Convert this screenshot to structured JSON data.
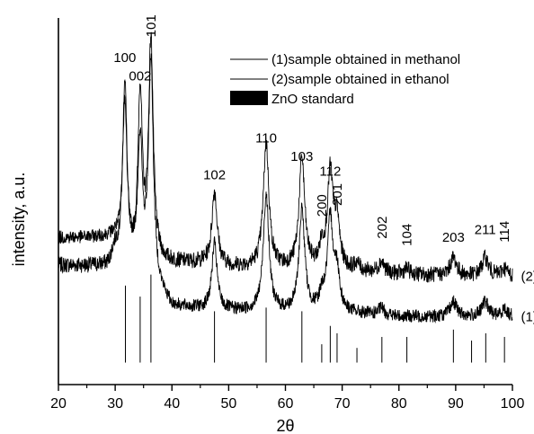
{
  "chart_data": {
    "type": "line",
    "xlabel": "2θ",
    "ylabel": "intensity, a.u.",
    "xlim": [
      20,
      100
    ],
    "ylim": [
      0,
      100
    ],
    "x_ticks": [
      20,
      30,
      40,
      50,
      60,
      70,
      80,
      90,
      100
    ],
    "grid": false,
    "legend": {
      "placement": "top-right",
      "entries": [
        {
          "label": "(1)sample obtained in methanol",
          "marker": "line"
        },
        {
          "label": "(2)sample obtained in ethanol",
          "marker": "line"
        },
        {
          "label": "ZnO standard",
          "marker": "filled-rect"
        }
      ]
    },
    "series_tags": [
      {
        "label": "(2)",
        "x": 101.5,
        "y": 29.5
      },
      {
        "label": "(1)",
        "x": 101.5,
        "y": 18.5
      }
    ],
    "background": {
      "x": 30,
      "y": 42
    },
    "peak_labels": [
      {
        "text": "100",
        "x": 31.7,
        "y": 88
      },
      {
        "text": "002",
        "x": 34.4,
        "y": 83
      },
      {
        "text": "101",
        "x": 36.3,
        "y": 96,
        "rotate": true
      },
      {
        "text": "102",
        "x": 47.5,
        "y": 56
      },
      {
        "text": "110",
        "x": 56.6,
        "y": 66
      },
      {
        "text": "103",
        "x": 62.9,
        "y": 61
      },
      {
        "text": "200",
        "x": 66.4,
        "y": 47,
        "rotate": true
      },
      {
        "text": "112",
        "x": 67.9,
        "y": 57
      },
      {
        "text": "201",
        "x": 69.1,
        "y": 50,
        "rotate": true
      },
      {
        "text": "202",
        "x": 77.0,
        "y": 41,
        "rotate": true
      },
      {
        "text": "104",
        "x": 81.4,
        "y": 39,
        "rotate": true
      },
      {
        "text": "203",
        "x": 89.6,
        "y": 39
      },
      {
        "text": "211",
        "x": 95.2,
        "y": 41
      },
      {
        "text": "114",
        "x": 98.6,
        "y": 40,
        "rotate": true
      }
    ],
    "series": [
      {
        "name": "(2)sample obtained in ethanol",
        "color": "#000000",
        "baseline": [
          [
            20,
            32.5
          ],
          [
            30,
            32
          ],
          [
            40,
            33
          ],
          [
            45,
            33
          ],
          [
            50,
            32
          ],
          [
            60,
            31.5
          ],
          [
            70,
            31
          ],
          [
            80,
            30
          ],
          [
            90,
            29.5
          ],
          [
            100,
            29.5
          ]
        ],
        "peaks": [
          {
            "x": 31.7,
            "height": 50,
            "width": 0.45
          },
          {
            "x": 34.4,
            "height": 46,
            "width": 0.45
          },
          {
            "x": 36.3,
            "height": 60,
            "width": 0.5
          },
          {
            "x": 47.5,
            "height": 20,
            "width": 0.55
          },
          {
            "x": 56.6,
            "height": 34,
            "width": 0.6
          },
          {
            "x": 62.9,
            "height": 30,
            "width": 0.6
          },
          {
            "x": 66.4,
            "height": 5,
            "width": 0.5
          },
          {
            "x": 67.9,
            "height": 26,
            "width": 0.6
          },
          {
            "x": 69.1,
            "height": 12,
            "width": 0.55
          },
          {
            "x": 72.6,
            "height": 2,
            "width": 0.5
          },
          {
            "x": 76.9,
            "height": 3,
            "width": 0.6
          },
          {
            "x": 81.4,
            "height": 1.5,
            "width": 0.6
          },
          {
            "x": 89.6,
            "height": 5,
            "width": 0.7
          },
          {
            "x": 95.2,
            "height": 5,
            "width": 0.7
          },
          {
            "x": 98.6,
            "height": 2,
            "width": 0.6
          }
        ],
        "shoulder": {
          "x": 30,
          "height": 4
        },
        "noise": 2.2
      },
      {
        "name": "(1)sample obtained in methanol",
        "color": "#000000",
        "baseline": [
          [
            20,
            40
          ],
          [
            30,
            40
          ],
          [
            40,
            21
          ],
          [
            50,
            20
          ],
          [
            60,
            19.5
          ],
          [
            70,
            19.5
          ],
          [
            80,
            18.5
          ],
          [
            90,
            18.5
          ],
          [
            100,
            18.5
          ]
        ],
        "peaks": [
          {
            "x": 31.7,
            "height": 40,
            "width": 0.45
          },
          {
            "x": 34.4,
            "height": 34,
            "width": 0.45
          },
          {
            "x": 36.3,
            "height": 60,
            "width": 0.5
          },
          {
            "x": 47.5,
            "height": 18,
            "width": 0.55
          },
          {
            "x": 56.6,
            "height": 32,
            "width": 0.6
          },
          {
            "x": 62.9,
            "height": 28,
            "width": 0.6
          },
          {
            "x": 66.4,
            "height": 4,
            "width": 0.5
          },
          {
            "x": 67.9,
            "height": 25,
            "width": 0.6
          },
          {
            "x": 69.1,
            "height": 10,
            "width": 0.55
          },
          {
            "x": 76.9,
            "height": 2,
            "width": 0.6
          },
          {
            "x": 89.6,
            "height": 4,
            "width": 0.7
          },
          {
            "x": 95.2,
            "height": 4,
            "width": 0.7
          },
          {
            "x": 98.6,
            "height": 2,
            "width": 0.6
          }
        ],
        "noise": 1.8
      }
    ],
    "standard_lines": {
      "name": "ZnO standard",
      "color": "#000000",
      "base_y": 6,
      "lines": [
        {
          "x": 31.8,
          "y": 27
        },
        {
          "x": 34.4,
          "y": 24
        },
        {
          "x": 36.3,
          "y": 30
        },
        {
          "x": 47.5,
          "y": 20
        },
        {
          "x": 56.6,
          "y": 21
        },
        {
          "x": 62.9,
          "y": 20
        },
        {
          "x": 66.4,
          "y": 11
        },
        {
          "x": 67.9,
          "y": 16
        },
        {
          "x": 69.1,
          "y": 14
        },
        {
          "x": 72.6,
          "y": 10
        },
        {
          "x": 77.0,
          "y": 13
        },
        {
          "x": 81.4,
          "y": 13
        },
        {
          "x": 89.6,
          "y": 15
        },
        {
          "x": 92.8,
          "y": 12
        },
        {
          "x": 95.3,
          "y": 14
        },
        {
          "x": 98.6,
          "y": 13
        }
      ]
    }
  }
}
